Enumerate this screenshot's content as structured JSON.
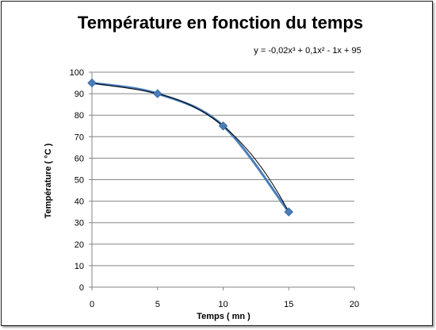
{
  "chart_data": {
    "type": "line",
    "title": "Température en fonction du temps",
    "xlabel": "Temps ( mn )",
    "ylabel": "Température ( °C )",
    "xlim": [
      0,
      20
    ],
    "ylim": [
      0,
      100
    ],
    "x_ticks": [
      0,
      5,
      10,
      15,
      20
    ],
    "y_ticks": [
      0,
      10,
      20,
      30,
      40,
      50,
      60,
      70,
      80,
      90,
      100
    ],
    "grid": "horizontal",
    "legend": "none",
    "series": [
      {
        "x": [
          0,
          5,
          10,
          15
        ],
        "values": [
          95,
          90,
          75,
          35
        ],
        "marker": "diamond",
        "color": "#4a7ebb",
        "smooth": true
      }
    ],
    "trendline": {
      "type": "polynomial",
      "order": 3,
      "coefficients": [
        -0.02,
        0.1,
        -1,
        95
      ],
      "equation_label": "y = -0,02x³ + 0,1x² - 1x + 95",
      "color": "#000000"
    }
  }
}
